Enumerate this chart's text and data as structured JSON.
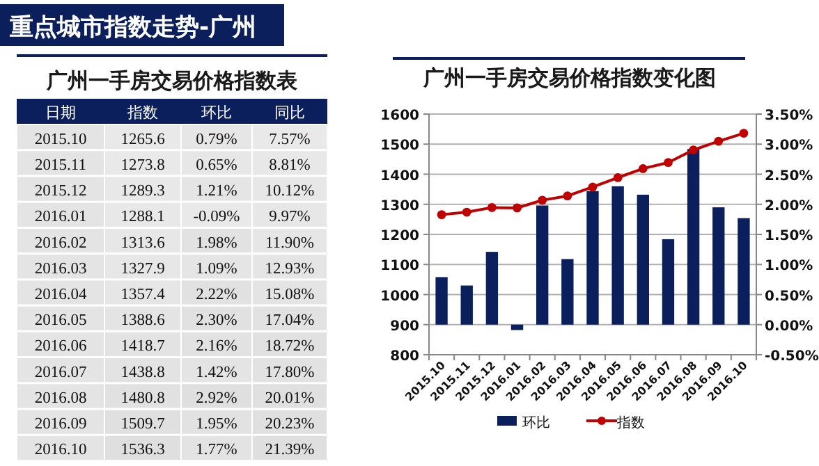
{
  "chart_data": [
    {
      "type": "heatmap",
      "title": "重点城市指数走势-广州",
      "subtitle": "广州一手房交易价格指数表",
      "ylabel": "日期",
      "categories": [
        "指数",
        "环比",
        "同比"
      ],
      "y_categories": [
        "2015.10",
        "2015.11",
        "2015.12",
        "2016.01",
        "2016.02",
        "2016.03",
        "2016.04",
        "2016.05",
        "2016.06",
        "2016.07",
        "2016.08",
        "2016.09",
        "2016.10"
      ],
      "cells": [
        [
          1265.6,
          0.79,
          7.57
        ],
        [
          1273.8,
          0.65,
          8.81
        ],
        [
          1289.3,
          1.21,
          10.12
        ],
        [
          1288.1,
          -0.09,
          9.97
        ],
        [
          1313.6,
          1.98,
          11.9
        ],
        [
          1327.9,
          1.09,
          12.93
        ],
        [
          1357.4,
          2.22,
          15.08
        ],
        [
          1388.6,
          2.3,
          17.04
        ],
        [
          1418.7,
          2.16,
          18.72
        ],
        [
          1438.8,
          1.42,
          17.8
        ],
        [
          1480.8,
          2.92,
          20.01
        ],
        [
          1509.7,
          1.95,
          20.23
        ],
        [
          1536.3,
          1.77,
          21.39
        ]
      ],
      "cell_labels": [
        [
          "1265.6",
          "0.79%",
          "7.57%"
        ],
        [
          "1273.8",
          "0.65%",
          "8.81%"
        ],
        [
          "1289.3",
          "1.21%",
          "10.12%"
        ],
        [
          "1288.1",
          "-0.09%",
          "9.97%"
        ],
        [
          "1313.6",
          "1.98%",
          "11.90%"
        ],
        [
          "1327.9",
          "1.09%",
          "12.93%"
        ],
        [
          "1357.4",
          "2.22%",
          "15.08%"
        ],
        [
          "1388.6",
          "2.30%",
          "17.04%"
        ],
        [
          "1418.7",
          "2.16%",
          "18.72%"
        ],
        [
          "1438.8",
          "1.42%",
          "17.80%"
        ],
        [
          "1480.8",
          "2.92%",
          "20.01%"
        ],
        [
          "1509.7",
          "1.95%",
          "20.23%"
        ],
        [
          "1536.3",
          "1.77%",
          "21.39%"
        ]
      ]
    },
    {
      "type": "bar",
      "title": "广州一手房交易价格指数变化图",
      "categories": [
        "2015.10",
        "2015.11",
        "2015.12",
        "2016.01",
        "2016.02",
        "2016.03",
        "2016.04",
        "2016.05",
        "2016.06",
        "2016.07",
        "2016.08",
        "2016.09",
        "2016.10"
      ],
      "series": [
        {
          "name": "环比",
          "type": "bar",
          "axis": "y2",
          "color": "#0b1f5c",
          "values": [
            0.79,
            0.65,
            1.21,
            -0.09,
            1.98,
            1.09,
            2.22,
            2.3,
            2.16,
            1.42,
            2.92,
            1.95,
            1.77
          ]
        },
        {
          "name": "指数",
          "type": "line",
          "color": "#c00000",
          "marker": "circle",
          "values": [
            1265.6,
            1273.8,
            1289.3,
            1288.1,
            1313.6,
            1327.9,
            1357.4,
            1388.6,
            1418.7,
            1438.8,
            1480.8,
            1509.7,
            1536.3
          ]
        }
      ],
      "ylim": [
        800,
        1600
      ],
      "yticks": [
        800,
        900,
        1000,
        1100,
        1200,
        1300,
        1400,
        1500,
        1600
      ],
      "y2lim": [
        -0.5,
        3.5
      ],
      "y2ticks": [
        {
          "value": -0.5,
          "label": "-0.50%"
        },
        {
          "value": 0,
          "label": "0.00%"
        },
        {
          "value": 0.5,
          "label": "0.50%"
        },
        {
          "value": 1,
          "label": "1.00%"
        },
        {
          "value": 1.5,
          "label": "1.50%"
        },
        {
          "value": 2,
          "label": "2.00%"
        },
        {
          "value": 2.5,
          "label": "2.50%"
        },
        {
          "value": 3,
          "label": "3.00%"
        },
        {
          "value": 3.5,
          "label": "3.50%"
        }
      ],
      "grid": "y",
      "legend": "bottom"
    }
  ]
}
